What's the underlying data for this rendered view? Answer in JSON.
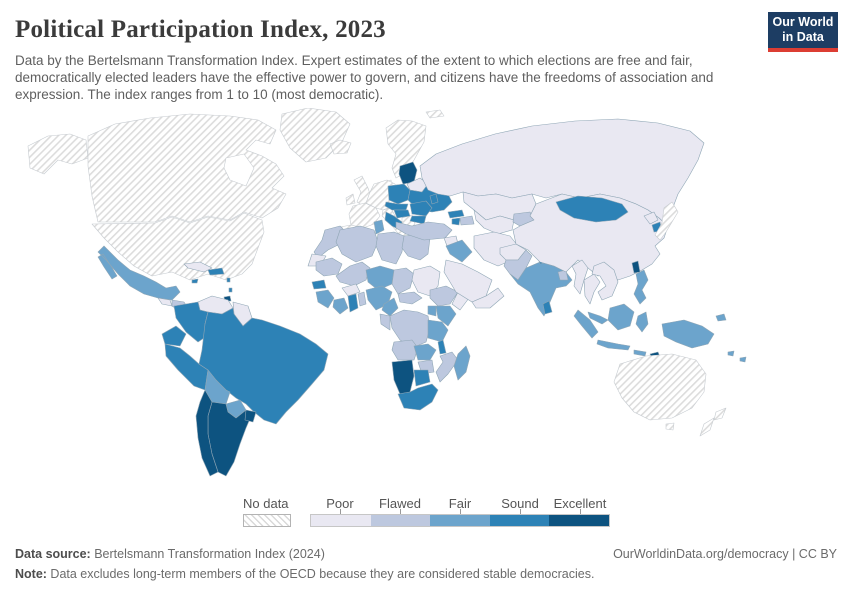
{
  "header": {
    "title": "Political Participation Index, 2023",
    "subtitle": "Data by the Bertelsmann Transformation Index. Expert estimates of the extent to which elections are free and fair, democratically elected leaders have the effective power to govern, and citizens have the freedoms of association and expression. The index ranges from 1 to 10 (most democratic).",
    "logo": {
      "line1": "Our World",
      "line2": "in Data",
      "bg_color": "#1d3d63",
      "accent_color": "#dc3d33"
    }
  },
  "legend": {
    "no_data_label": "No data",
    "bins": [
      {
        "key": "poor",
        "label": "Poor",
        "color": "#e9e8f2"
      },
      {
        "key": "flawed",
        "label": "Flawed",
        "color": "#bdc8df"
      },
      {
        "key": "fair",
        "label": "Fair",
        "color": "#6ca4cc"
      },
      {
        "key": "sound",
        "label": "Sound",
        "color": "#2d82b6"
      },
      {
        "key": "excellent",
        "label": "Excellent",
        "color": "#0d5380"
      }
    ]
  },
  "footer": {
    "source_label": "Data source:",
    "source_text": " Bertelsmann Transformation Index (2024)",
    "link": "OurWorldinData.org/democracy",
    "license": " | CC BY",
    "note_label": "Note:",
    "note_text": " Data excludes long-term members of the OECD because they are considered stable democracies."
  },
  "map": {
    "no_data_border": "#c6cbd0",
    "border": "#8fa6b5",
    "hatch_line_color": "#dcdcdc",
    "regions": {
      "alaska": "no_data",
      "canada": "no_data",
      "greenland": "no_data",
      "usa": "no_data",
      "iceland": "no_data",
      "uk": "no_data",
      "ireland": "no_data",
      "scandinavia": "no_data",
      "svalbard": "no_data",
      "denmark": "no_data",
      "germany_central": "no_data",
      "france": "no_data",
      "iberia": "no_data",
      "italy": "no_data",
      "greece": "no_data",
      "australia": "no_data",
      "new_zealand": "no_data",
      "japan": "no_data",
      "russia": "poor",
      "china": "poor",
      "kazakhstan": "poor",
      "central_asia": "poor",
      "belarus": "poor",
      "venezuela": "poor",
      "guyanas": "poor",
      "cuba": "poor",
      "iran": "poor",
      "saudi_arabia": "poor",
      "yemen_oman": "poor",
      "afghanistan": "poor",
      "myanmar": "poor",
      "thailand": "poor",
      "indochina": "poor",
      "north_korea": "poor",
      "sudan": "poor",
      "somalia": "poor",
      "western_sahara": "poor",
      "guatemala": "poor",
      "nicaragua": "poor",
      "burkina_faso": "poor",
      "syria": "poor",
      "turkey": "flawed",
      "pakistan": "flawed",
      "bangladesh": "flawed",
      "azerbaijan": "flawed",
      "kyrgyzstan_tajikistan": "flawed",
      "morocco": "flawed",
      "algeria": "flawed",
      "libya": "flawed",
      "egypt": "flawed",
      "mauritania": "flawed",
      "mali": "flawed",
      "chad": "flawed",
      "central_african_republic": "flawed",
      "gabon_congo": "flawed",
      "drc": "flawed",
      "angola": "flawed",
      "zimbabwe": "flawed",
      "mozambique": "flawed",
      "ethiopia": "flawed",
      "honduras": "flawed",
      "benin_togo": "flawed",
      "mexico": "fair",
      "bolivia": "fair",
      "paraguay": "fair",
      "niger": "fair",
      "nigeria": "fair",
      "guinea": "fair",
      "ivory_coast": "fair",
      "cameroon": "fair",
      "kenya": "fair",
      "uganda": "fair",
      "tanzania": "fair",
      "zambia": "fair",
      "madagascar": "fair",
      "india": "fair",
      "indonesia": "fair",
      "malaysia": "fair",
      "philippines": "fair",
      "papua_new_guinea": "fair",
      "tunisia": "fair",
      "pacific_islands": "fair",
      "iraq": "fair",
      "colombia": "sound",
      "ecuador": "sound",
      "peru": "sound",
      "brazil": "sound",
      "senegal": "sound",
      "ghana": "sound",
      "south_africa": "sound",
      "botswana": "sound",
      "malawi": "sound",
      "mongolia": "sound",
      "south_korea": "sound",
      "ukraine": "sound",
      "poland": "sound",
      "czechia_slovakia": "sound",
      "hungary": "sound",
      "balkans": "sound",
      "romania": "sound",
      "bulgaria": "sound",
      "moldova": "sound",
      "georgia": "sound",
      "armenia": "sound",
      "panama": "sound",
      "haiti_dominican_republic": "sound",
      "jamaica": "sound",
      "lesser_antilles": "sound",
      "sri_lanka": "sound",
      "nepal": "sound",
      "baltics": "excellent",
      "argentina": "excellent",
      "chile": "excellent",
      "uruguay": "excellent",
      "namibia": "excellent",
      "taiwan": "excellent",
      "costa_rica": "excellent",
      "timor_leste": "excellent",
      "trinidad": "excellent"
    }
  }
}
